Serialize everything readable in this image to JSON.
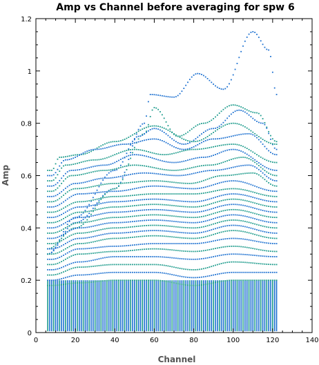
{
  "chart_data": {
    "type": "scatter",
    "title": "Amp vs Channel before averaging for spw 6",
    "xlabel": "Channel",
    "ylabel": "Amp",
    "xlim": [
      0,
      140
    ],
    "ylim": [
      0,
      1.2
    ],
    "xticks": [
      "0",
      "20",
      "40",
      "60",
      "80",
      "100",
      "120",
      "140"
    ],
    "yticks": [
      "0",
      "0.2",
      "0.4",
      "0.6",
      "0.8",
      "1",
      "1.2"
    ],
    "channel_range": [
      6,
      122
    ],
    "colors": {
      "primary": "#1a6fd0",
      "secondary": "#1a9a8a",
      "axis": "#000000"
    },
    "series": [
      {
        "values": [
          [
            6,
            0.3
          ],
          [
            20,
            0.42
          ],
          [
            40,
            0.55
          ],
          [
            55,
            0.8
          ],
          [
            58,
            0.91
          ],
          [
            70,
            0.9
          ],
          [
            82,
            0.99
          ],
          [
            95,
            0.93
          ],
          [
            110,
            1.15
          ],
          [
            118,
            1.08
          ],
          [
            122,
            0.91
          ]
        ]
      },
      {
        "values": [
          [
            6,
            0.32
          ],
          [
            20,
            0.4
          ],
          [
            40,
            0.55
          ],
          [
            55,
            0.76
          ],
          [
            60,
            0.86
          ],
          [
            72,
            0.75
          ],
          [
            85,
            0.8
          ],
          [
            100,
            0.87
          ],
          [
            112,
            0.84
          ],
          [
            122,
            0.73
          ]
        ]
      },
      {
        "values": [
          [
            6,
            0.3
          ],
          [
            20,
            0.44
          ],
          [
            40,
            0.62
          ],
          [
            52,
            0.75
          ],
          [
            60,
            0.78
          ],
          [
            75,
            0.72
          ],
          [
            90,
            0.78
          ],
          [
            103,
            0.85
          ],
          [
            115,
            0.8
          ],
          [
            122,
            0.7
          ]
        ]
      },
      {
        "values": [
          [
            8,
            0.62
          ],
          [
            12,
            0.67
          ],
          [
            22,
            0.68
          ],
          [
            40,
            0.73
          ],
          [
            60,
            0.79
          ],
          [
            80,
            0.73
          ],
          [
            100,
            0.8
          ],
          [
            122,
            0.72
          ]
        ]
      },
      {
        "values": [
          [
            8,
            0.6
          ],
          [
            15,
            0.66
          ],
          [
            30,
            0.7
          ],
          [
            45,
            0.72
          ],
          [
            60,
            0.74
          ],
          [
            75,
            0.7
          ],
          [
            90,
            0.74
          ],
          [
            108,
            0.76
          ],
          [
            122,
            0.68
          ]
        ]
      },
      {
        "values": [
          [
            8,
            0.58
          ],
          [
            15,
            0.64
          ],
          [
            30,
            0.66
          ],
          [
            50,
            0.7
          ],
          [
            65,
            0.68
          ],
          [
            80,
            0.7
          ],
          [
            100,
            0.72
          ],
          [
            122,
            0.65
          ]
        ]
      },
      {
        "values": [
          [
            8,
            0.56
          ],
          [
            18,
            0.62
          ],
          [
            35,
            0.64
          ],
          [
            50,
            0.68
          ],
          [
            70,
            0.65
          ],
          [
            85,
            0.67
          ],
          [
            100,
            0.7
          ],
          [
            122,
            0.62
          ]
        ]
      },
      {
        "values": [
          [
            8,
            0.54
          ],
          [
            18,
            0.6
          ],
          [
            35,
            0.62
          ],
          [
            50,
            0.64
          ],
          [
            70,
            0.62
          ],
          [
            88,
            0.64
          ],
          [
            105,
            0.67
          ],
          [
            122,
            0.6
          ]
        ]
      },
      {
        "values": [
          [
            8,
            0.52
          ],
          [
            20,
            0.57
          ],
          [
            35,
            0.59
          ],
          [
            55,
            0.61
          ],
          [
            72,
            0.6
          ],
          [
            90,
            0.62
          ],
          [
            108,
            0.64
          ],
          [
            122,
            0.58
          ]
        ]
      },
      {
        "values": [
          [
            8,
            0.5
          ],
          [
            20,
            0.55
          ],
          [
            40,
            0.57
          ],
          [
            60,
            0.58
          ],
          [
            78,
            0.57
          ],
          [
            95,
            0.6
          ],
          [
            110,
            0.61
          ],
          [
            122,
            0.56
          ]
        ]
      },
      {
        "values": [
          [
            8,
            0.48
          ],
          [
            22,
            0.53
          ],
          [
            40,
            0.54
          ],
          [
            60,
            0.56
          ],
          [
            80,
            0.55
          ],
          [
            100,
            0.58
          ],
          [
            122,
            0.54
          ]
        ]
      },
      {
        "values": [
          [
            8,
            0.46
          ],
          [
            22,
            0.5
          ],
          [
            40,
            0.52
          ],
          [
            60,
            0.53
          ],
          [
            80,
            0.53
          ],
          [
            100,
            0.55
          ],
          [
            122,
            0.52
          ]
        ]
      },
      {
        "values": [
          [
            8,
            0.44
          ],
          [
            22,
            0.48
          ],
          [
            40,
            0.5
          ],
          [
            60,
            0.51
          ],
          [
            80,
            0.5
          ],
          [
            100,
            0.53
          ],
          [
            122,
            0.5
          ]
        ]
      },
      {
        "values": [
          [
            8,
            0.42
          ],
          [
            22,
            0.46
          ],
          [
            40,
            0.48
          ],
          [
            60,
            0.49
          ],
          [
            80,
            0.48
          ],
          [
            100,
            0.51
          ],
          [
            122,
            0.48
          ]
        ]
      },
      {
        "values": [
          [
            8,
            0.4
          ],
          [
            22,
            0.44
          ],
          [
            40,
            0.46
          ],
          [
            60,
            0.47
          ],
          [
            80,
            0.46
          ],
          [
            100,
            0.49
          ],
          [
            122,
            0.46
          ]
        ]
      },
      {
        "values": [
          [
            8,
            0.38
          ],
          [
            22,
            0.42
          ],
          [
            40,
            0.44
          ],
          [
            60,
            0.45
          ],
          [
            80,
            0.44
          ],
          [
            100,
            0.47
          ],
          [
            122,
            0.44
          ]
        ]
      },
      {
        "values": [
          [
            8,
            0.36
          ],
          [
            22,
            0.4
          ],
          [
            40,
            0.42
          ],
          [
            60,
            0.43
          ],
          [
            80,
            0.42
          ],
          [
            100,
            0.45
          ],
          [
            122,
            0.42
          ]
        ]
      },
      {
        "values": [
          [
            8,
            0.34
          ],
          [
            22,
            0.38
          ],
          [
            40,
            0.4
          ],
          [
            60,
            0.41
          ],
          [
            80,
            0.4
          ],
          [
            100,
            0.43
          ],
          [
            122,
            0.4
          ]
        ]
      },
      {
        "values": [
          [
            8,
            0.32
          ],
          [
            22,
            0.36
          ],
          [
            40,
            0.38
          ],
          [
            60,
            0.39
          ],
          [
            80,
            0.38
          ],
          [
            100,
            0.41
          ],
          [
            122,
            0.38
          ]
        ]
      },
      {
        "values": [
          [
            8,
            0.3
          ],
          [
            22,
            0.34
          ],
          [
            40,
            0.36
          ],
          [
            60,
            0.37
          ],
          [
            80,
            0.36
          ],
          [
            100,
            0.39
          ],
          [
            122,
            0.36
          ]
        ]
      },
      {
        "values": [
          [
            8,
            0.28
          ],
          [
            22,
            0.32
          ],
          [
            40,
            0.33
          ],
          [
            60,
            0.34
          ],
          [
            80,
            0.34
          ],
          [
            100,
            0.36
          ],
          [
            122,
            0.34
          ]
        ]
      },
      {
        "values": [
          [
            8,
            0.26
          ],
          [
            22,
            0.3
          ],
          [
            40,
            0.31
          ],
          [
            60,
            0.32
          ],
          [
            80,
            0.31
          ],
          [
            100,
            0.33
          ],
          [
            122,
            0.31
          ]
        ]
      },
      {
        "values": [
          [
            8,
            0.24
          ],
          [
            22,
            0.27
          ],
          [
            40,
            0.29
          ],
          [
            60,
            0.29
          ],
          [
            80,
            0.28
          ],
          [
            100,
            0.3
          ],
          [
            122,
            0.29
          ]
        ]
      },
      {
        "values": [
          [
            8,
            0.22
          ],
          [
            22,
            0.25
          ],
          [
            40,
            0.26
          ],
          [
            60,
            0.26
          ],
          [
            80,
            0.24
          ],
          [
            100,
            0.27
          ],
          [
            122,
            0.26
          ]
        ]
      },
      {
        "values": [
          [
            8,
            0.2
          ],
          [
            22,
            0.22
          ],
          [
            40,
            0.23
          ],
          [
            60,
            0.23
          ],
          [
            80,
            0.21
          ],
          [
            100,
            0.23
          ],
          [
            122,
            0.23
          ]
        ]
      },
      {
        "values": [
          [
            8,
            0.18
          ],
          [
            22,
            0.19
          ],
          [
            40,
            0.2
          ],
          [
            60,
            0.2
          ],
          [
            80,
            0.18
          ],
          [
            100,
            0.2
          ],
          [
            122,
            0.2
          ]
        ]
      }
    ]
  }
}
